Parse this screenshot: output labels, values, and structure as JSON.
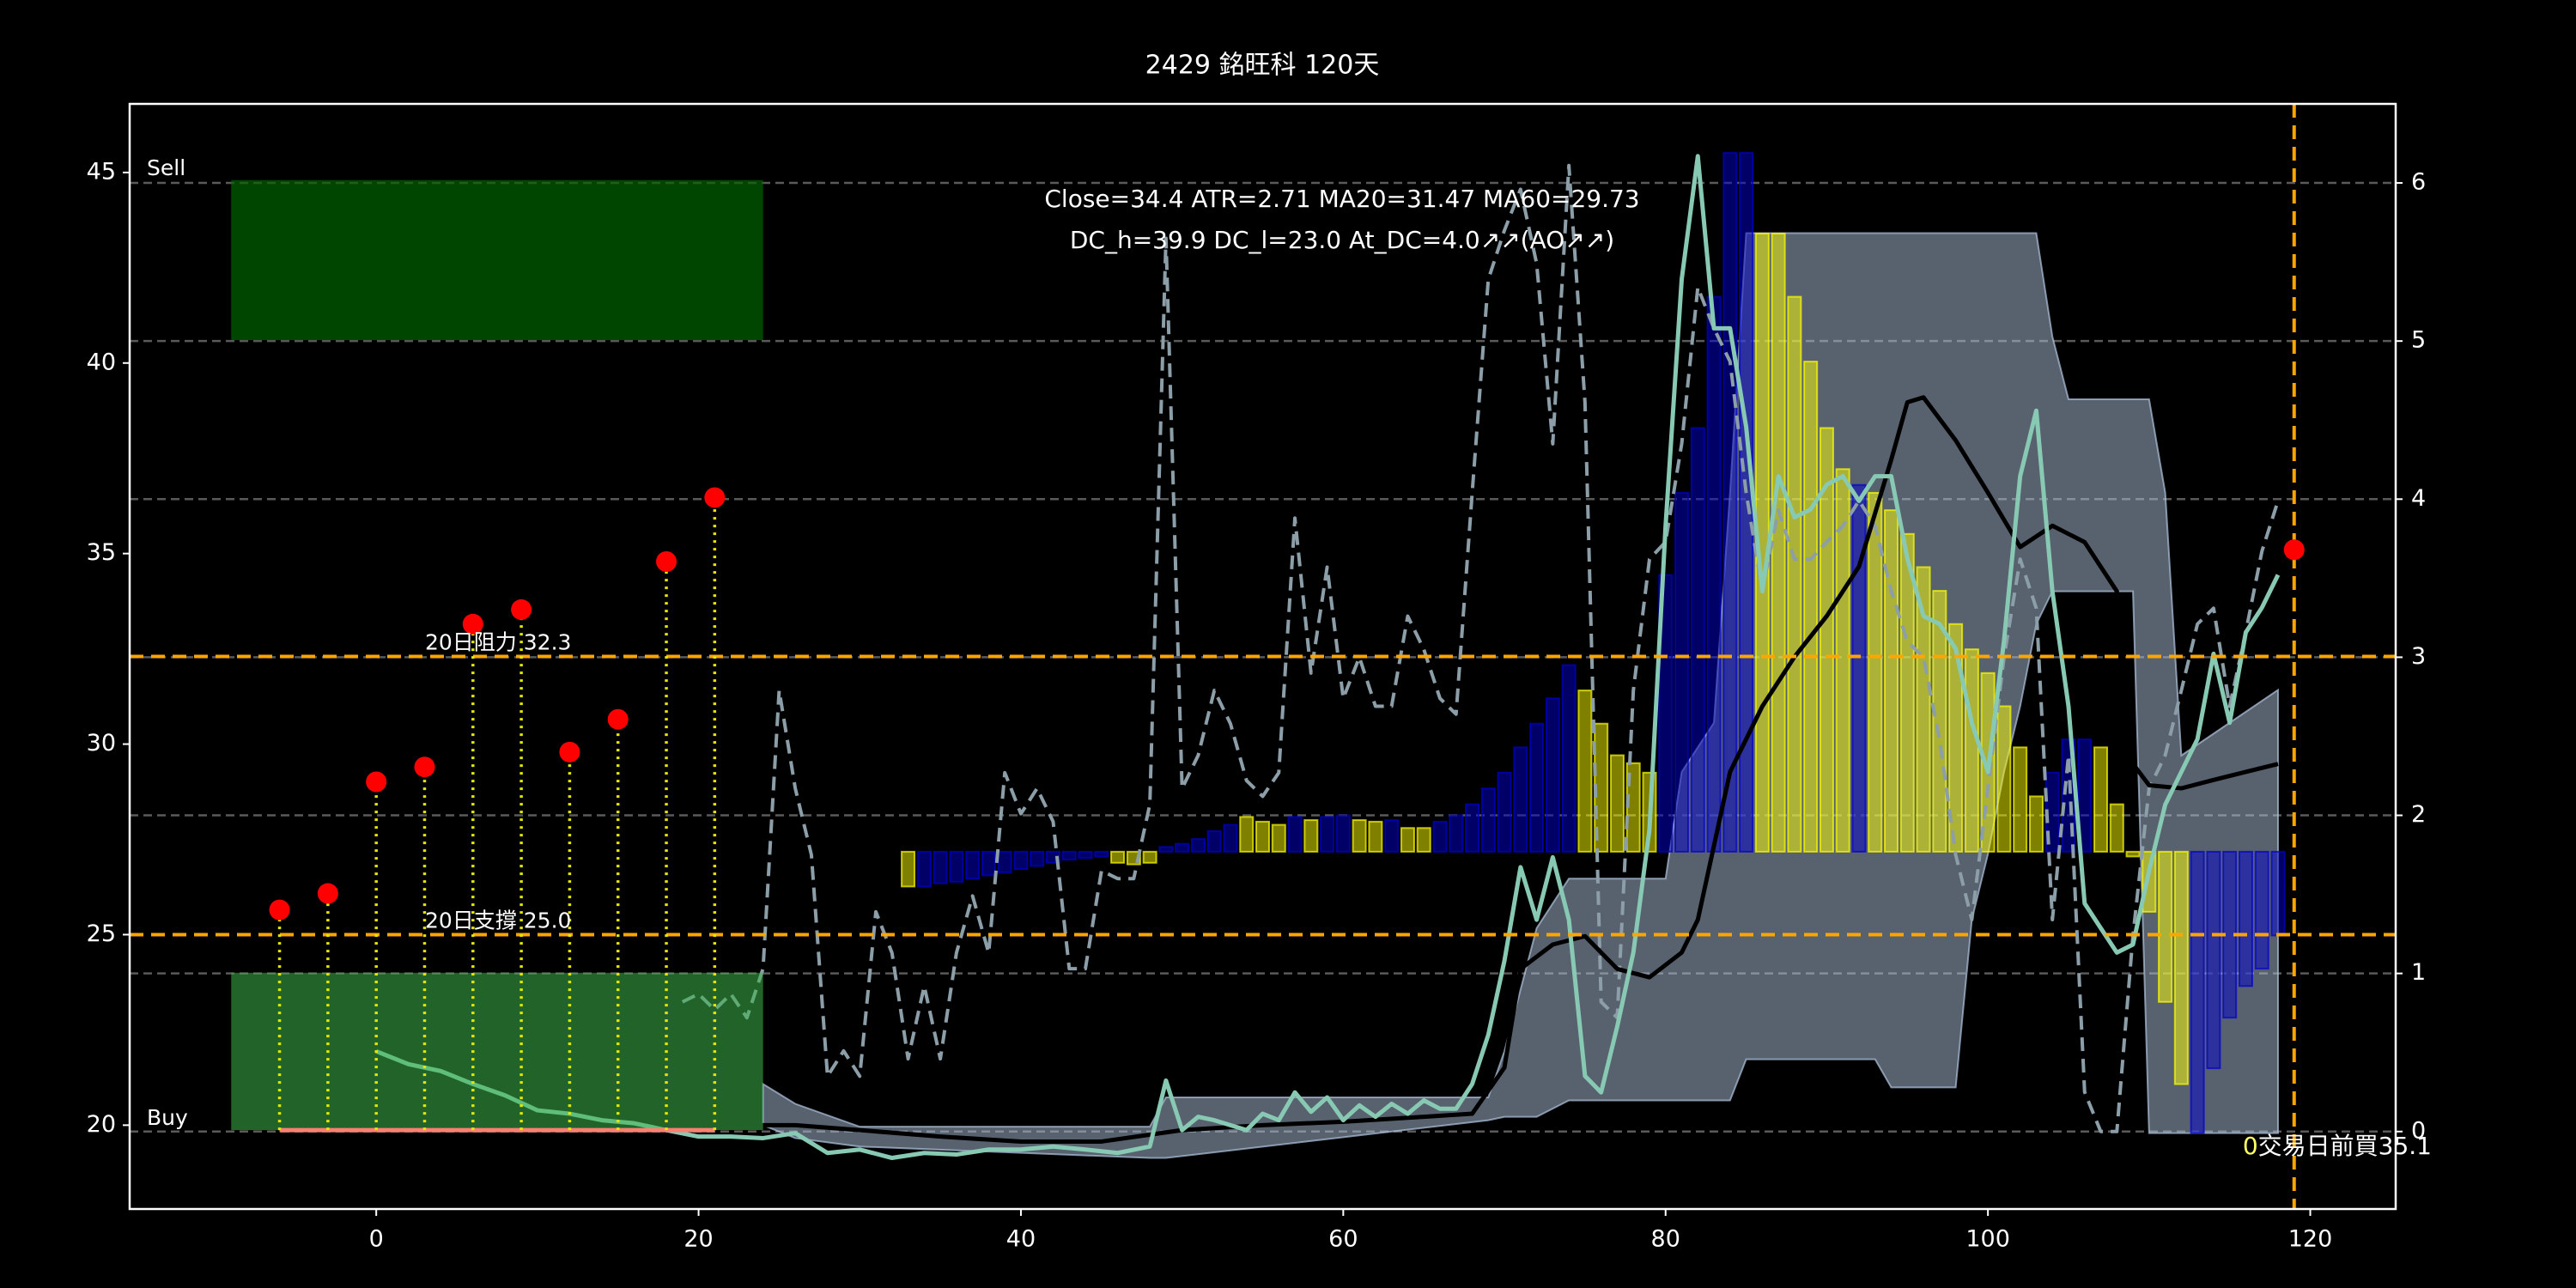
{
  "chart_data": {
    "type": "line",
    "title": "2429 銘旺科 120天",
    "annotation": [
      "Close=34.4 ATR=2.71 MA20=31.47 MA60=29.73",
      "DC_h=39.9 DC_l=23.0 At_DC=4.0↗↗(AO↗↗)"
    ],
    "xlim": [
      -15.3,
      125.3
    ],
    "xticks": [
      0,
      20,
      40,
      60,
      80,
      100,
      120
    ],
    "ylim": [
      17.8,
      46.8
    ],
    "yticks": [
      20,
      25,
      30,
      35,
      40,
      45
    ],
    "y2lim": [
      -0.49,
      6.5
    ],
    "y2ticks": [
      0,
      1,
      2,
      3,
      4,
      5,
      6
    ],
    "grid": "y2",
    "band": {
      "color": "#b0c4de",
      "x": [
        24,
        26,
        30,
        48,
        49,
        69,
        70,
        72,
        74,
        75,
        80,
        81,
        83,
        84,
        85,
        93,
        94,
        98,
        99,
        100,
        101,
        102,
        103,
        104,
        105,
        109,
        110,
        111,
        112,
        118
      ],
      "upper": [
        21.08,
        20.56,
        19.96,
        19.96,
        20.73,
        20.73,
        21.94,
        25.17,
        26.47,
        26.47,
        26.47,
        29.27,
        30.56,
        36.6,
        43.41,
        43.41,
        43.41,
        43.41,
        43.41,
        43.41,
        43.41,
        43.41,
        43.41,
        40.69,
        39.05,
        39.05,
        39.05,
        36.6,
        29.7,
        31.42
      ],
      "lower": [
        20.0,
        19.66,
        19.44,
        19.14,
        19.14,
        20.13,
        20.22,
        20.22,
        20.65,
        20.65,
        20.65,
        20.65,
        20.65,
        20.65,
        21.73,
        21.73,
        20.99,
        20.99,
        25.39,
        27.11,
        29.27,
        30.99,
        33.15,
        34.01,
        34.01,
        34.01,
        19.79,
        19.79,
        19.79,
        19.79
      ]
    },
    "bars": {
      "axis": "y2",
      "base": 1.77,
      "x": [
        33,
        34,
        35,
        36,
        37,
        38,
        39,
        40,
        41,
        42,
        43,
        44,
        45,
        46,
        47,
        48,
        49,
        50,
        51,
        52,
        53,
        54,
        55,
        56,
        57,
        58,
        59,
        60,
        61,
        62,
        63,
        64,
        65,
        66,
        67,
        68,
        69,
        70,
        71,
        72,
        73,
        74,
        75,
        76,
        77,
        78,
        79,
        80,
        81,
        82,
        83,
        84,
        85,
        86,
        87,
        88,
        89,
        90,
        91,
        92,
        93,
        94,
        95,
        96,
        97,
        98,
        99,
        100,
        101,
        102,
        103,
        104,
        105,
        106,
        107,
        108,
        109,
        110,
        111,
        112,
        113,
        114,
        115,
        116,
        117,
        118
      ],
      "values": [
        1.55,
        1.55,
        1.57,
        1.58,
        1.6,
        1.62,
        1.64,
        1.66,
        1.68,
        1.7,
        1.72,
        1.73,
        1.74,
        1.7,
        1.69,
        1.7,
        1.8,
        1.82,
        1.85,
        1.9,
        1.94,
        1.99,
        1.96,
        1.94,
        1.99,
        1.97,
        1.99,
        2.0,
        1.97,
        1.96,
        1.97,
        1.92,
        1.92,
        1.96,
        2.0,
        2.07,
        2.17,
        2.27,
        2.43,
        2.58,
        2.74,
        2.95,
        2.79,
        2.58,
        2.38,
        2.33,
        2.27,
        3.52,
        4.04,
        4.45,
        5.28,
        6.19,
        6.19,
        5.68,
        5.68,
        5.28,
        4.87,
        4.45,
        4.19,
        4.09,
        4.04,
        3.93,
        3.78,
        3.57,
        3.42,
        3.21,
        3.05,
        2.9,
        2.69,
        2.43,
        2.12,
        2.27,
        2.48,
        2.48,
        2.43,
        2.07,
        1.74,
        1.39,
        0.82,
        0.3,
        -0.01,
        0.4,
        0.72,
        0.92,
        1.03,
        1.24
      ],
      "colors": [
        "#ffff00",
        "#0000cd",
        "#0000cd",
        "#0000cd",
        "#0000cd",
        "#0000cd",
        "#0000cd",
        "#0000cd",
        "#0000cd",
        "#0000cd",
        "#0000cd",
        "#0000cd",
        "#0000cd",
        "#ffff00",
        "#ffff00",
        "#ffff00",
        "#0000cd",
        "#0000cd",
        "#0000cd",
        "#0000cd",
        "#0000cd",
        "#ffff00",
        "#ffff00",
        "#ffff00",
        "#0000cd",
        "#ffff00",
        "#0000cd",
        "#0000cd",
        "#ffff00",
        "#ffff00",
        "#0000cd",
        "#ffff00",
        "#ffff00",
        "#0000cd",
        "#0000cd",
        "#0000cd",
        "#0000cd",
        "#0000cd",
        "#0000cd",
        "#0000cd",
        "#0000cd",
        "#0000cd",
        "#ffff00",
        "#ffff00",
        "#ffff00",
        "#ffff00",
        "#ffff00",
        "#0000cd",
        "#0000cd",
        "#0000cd",
        "#0000cd",
        "#0000cd",
        "#0000cd",
        "#ffff00",
        "#ffff00",
        "#ffff00",
        "#ffff00",
        "#ffff00",
        "#ffff00",
        "#0000cd",
        "#ffff00",
        "#ffff00",
        "#ffff00",
        "#ffff00",
        "#ffff00",
        "#ffff00",
        "#ffff00",
        "#ffff00",
        "#ffff00",
        "#ffff00",
        "#ffff00",
        "#0000cd",
        "#0000cd",
        "#0000cd",
        "#ffff00",
        "#ffff00",
        "#ffff00",
        "#ffff00",
        "#ffff00",
        "#ffff00",
        "#0000cd",
        "#0000cd",
        "#0000cd",
        "#0000cd",
        "#0000cd",
        "#0000cd"
      ]
    },
    "series": [
      {
        "color": "#8c9ea8",
        "dash": true,
        "axis": "y2",
        "x": [
          19,
          20,
          21,
          22,
          23,
          24,
          25,
          26,
          27,
          28,
          29,
          30,
          31,
          32,
          33,
          34,
          35,
          36,
          37,
          38,
          39,
          40,
          41,
          42,
          43,
          44,
          45,
          46,
          47,
          48,
          49,
          50,
          51,
          52,
          53,
          54,
          55,
          56,
          57,
          58,
          59,
          60,
          61,
          62,
          63,
          64,
          65,
          66,
          67,
          68,
          69,
          70,
          71,
          72,
          73,
          74,
          75,
          76,
          77,
          78,
          79,
          80,
          81,
          82,
          83,
          84,
          85,
          86,
          87,
          88,
          89,
          90,
          91,
          92,
          93,
          94,
          95,
          96,
          97,
          98,
          99,
          100,
          101,
          102,
          103,
          104,
          105,
          106,
          107,
          108,
          109,
          110,
          111,
          112,
          113,
          114,
          115,
          116,
          117,
          118
        ],
        "values": [
          0.82,
          0.87,
          0.77,
          0.87,
          0.72,
          1.03,
          2.79,
          2.17,
          1.75,
          0.35,
          0.51,
          0.35,
          1.39,
          1.13,
          0.46,
          0.92,
          0.46,
          1.13,
          1.49,
          1.13,
          2.27,
          2.01,
          2.17,
          1.96,
          1.03,
          1.03,
          1.65,
          1.6,
          1.6,
          2.07,
          5.65,
          2.17,
          2.38,
          2.79,
          2.58,
          2.22,
          2.12,
          2.27,
          3.88,
          2.9,
          3.57,
          2.74,
          3.0,
          2.69,
          2.69,
          3.26,
          3.05,
          2.74,
          2.64,
          4.04,
          5.39,
          5.7,
          5.96,
          5.49,
          4.35,
          6.11,
          4.61,
          0.82,
          0.72,
          2.79,
          3.62,
          3.73,
          4.35,
          5.34,
          5.08,
          4.87,
          4.04,
          3.42,
          3.93,
          3.62,
          3.62,
          3.73,
          3.83,
          3.99,
          3.83,
          3.42,
          3.1,
          3.0,
          2.48,
          1.75,
          1.34,
          2.17,
          3.0,
          3.62,
          3.31,
          1.34,
          2.38,
          0.25,
          0,
          0,
          1.24,
          2.17,
          2.38,
          2.79,
          3.21,
          3.31,
          2.69,
          3.16,
          3.67,
          3.99
        ]
      },
      {
        "color": "#000000",
        "dash": false,
        "axis": "y",
        "x": [
          19,
          22,
          26,
          30,
          35,
          40,
          45,
          50,
          55,
          60,
          65,
          68,
          70,
          71,
          73,
          75,
          77,
          79,
          81,
          82,
          84,
          86,
          88,
          90,
          92,
          94,
          95,
          96,
          98,
          100,
          102,
          104,
          106,
          108,
          109,
          110,
          112,
          114,
          116,
          118
        ],
        "values": [
          19.87,
          20.0,
          20.0,
          19.87,
          19.7,
          19.57,
          19.57,
          19.87,
          20.0,
          20.09,
          20.22,
          20.3,
          21.51,
          24.1,
          24.74,
          24.96,
          24.1,
          23.88,
          24.53,
          25.39,
          29.27,
          30.99,
          32.29,
          33.36,
          34.66,
          37.46,
          38.97,
          39.1,
          37.97,
          36.6,
          35.17,
          35.73,
          35.3,
          34.01,
          29.48,
          28.92,
          28.84,
          29.06,
          29.27,
          29.48
        ]
      },
      {
        "color": "#88c9b4",
        "dash": false,
        "axis": "y",
        "x": [
          0,
          2,
          4,
          6,
          8,
          10,
          12,
          14,
          16,
          18,
          20,
          22,
          24,
          26,
          28,
          30,
          32,
          34,
          36,
          38,
          40,
          42,
          44,
          46,
          48,
          49,
          50,
          51,
          52,
          53,
          54,
          55,
          56,
          57,
          58,
          59,
          60,
          61,
          62,
          63,
          64,
          65,
          66,
          67,
          68,
          69,
          70,
          71,
          72,
          73,
          74,
          75,
          76,
          77,
          78,
          79,
          80,
          81,
          82,
          83,
          84,
          85,
          86,
          87,
          88,
          89,
          90,
          91,
          92,
          93,
          94,
          95,
          96,
          97,
          98,
          99,
          100,
          101,
          102,
          103,
          104,
          105,
          106,
          107,
          108,
          109,
          110,
          111,
          112,
          113,
          114,
          115,
          116,
          117,
          118
        ],
        "values": [
          21.94,
          21.6,
          21.42,
          21.08,
          20.78,
          20.39,
          20.3,
          20.13,
          20.05,
          19.87,
          19.7,
          19.7,
          19.66,
          19.79,
          19.27,
          19.36,
          19.14,
          19.27,
          19.23,
          19.36,
          19.36,
          19.44,
          19.36,
          19.27,
          19.44,
          21.17,
          19.87,
          20.22,
          20.13,
          20.0,
          19.87,
          20.3,
          20.13,
          20.86,
          20.35,
          20.73,
          20.13,
          20.52,
          20.22,
          20.56,
          20.3,
          20.65,
          20.43,
          20.43,
          21.08,
          22.37,
          24.31,
          26.77,
          25.39,
          27.03,
          25.39,
          21.29,
          20.86,
          22.59,
          24.53,
          27.76,
          35.73,
          42.2,
          45.43,
          40.91,
          40.91,
          38.32,
          34.01,
          37.03,
          35.95,
          36.16,
          36.81,
          37.03,
          36.38,
          37.03,
          37.03,
          34.87,
          33.36,
          33.15,
          32.5,
          30.56,
          29.27,
          32.72,
          37.03,
          38.75,
          34.01,
          30.99,
          25.82,
          25.17,
          24.53,
          24.74,
          26.68,
          28.41,
          29.27,
          30.13,
          32.37,
          30.56,
          32.93,
          33.58,
          34.44
        ]
      }
    ],
    "zones": [
      {
        "label": "Sell",
        "x": [
          -9,
          24
        ],
        "y": [
          40.6,
          44.8
        ],
        "color": "#006400"
      },
      {
        "label": "Buy",
        "x": [
          -9,
          24
        ],
        "y": [
          19.87,
          24.0
        ],
        "color": "#3cb44b"
      }
    ],
    "levels": [
      {
        "value": 32.3,
        "label": "20日阻力 32.3",
        "color": "#ffa500"
      },
      {
        "value": 25.0,
        "label": "20日支撐 25.0",
        "color": "#ffa500"
      }
    ],
    "vline": 119,
    "base_line": {
      "x": [
        -6,
        21
      ],
      "value": 19.87,
      "color": "#fa8072"
    },
    "signals": {
      "x": [
        -6,
        -3,
        0,
        3,
        6,
        9,
        12,
        15,
        18,
        21
      ],
      "values": [
        25.65,
        26.08,
        29.01,
        29.4,
        33.15,
        33.53,
        29.79,
        30.65,
        34.79,
        36.47
      ],
      "color": "#ff0000",
      "stem_color": "#e6e600"
    },
    "buy_point": {
      "x": 119,
      "value": 35.1
    },
    "buy_note": {
      "days": "0",
      "text": "交易日前買35.1"
    }
  }
}
